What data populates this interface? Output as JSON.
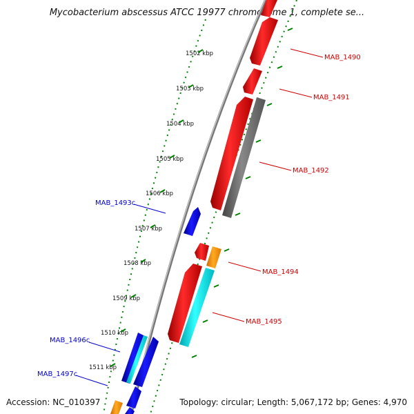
{
  "title": "Mycobacterium abscessus ATCC 19977 chromosome 1, complete se...",
  "footer": {
    "accession": "Accession: NC_010397",
    "summary": "Topology: circular; Length: 5,067,172 bp; Genes: 4,970"
  },
  "ticks": [
    "1502 kbp",
    "1503 kbp",
    "1504 kbp",
    "1505 kbp",
    "1506 kbp",
    "1507 kbp",
    "1508 kbp",
    "1509 kbp",
    "1510 kbp",
    "1511 kbp"
  ],
  "gene_labels": [
    {
      "text": "MAB_1490",
      "color": "#cc0000"
    },
    {
      "text": "MAB_1491",
      "color": "#cc0000"
    },
    {
      "text": "MAB_1492",
      "color": "#cc0000"
    },
    {
      "text": "MAB_1493c",
      "color": "#0000cc"
    },
    {
      "text": "MAB_1494",
      "color": "#cc0000"
    },
    {
      "text": "MAB_1495",
      "color": "#cc0000"
    },
    {
      "text": "MAB_1496c",
      "color": "#0000cc"
    },
    {
      "text": "MAB_1497c",
      "color": "#0000cc"
    }
  ],
  "colors": {
    "forward_cds": "#ff0000",
    "reverse_cds": "#0000ee",
    "other_feature": "#666666",
    "cyan_feature": "#00e5ee",
    "orange_feature": "#ff9900",
    "ruler_dots": "#008000",
    "backbone": "#999999"
  }
}
